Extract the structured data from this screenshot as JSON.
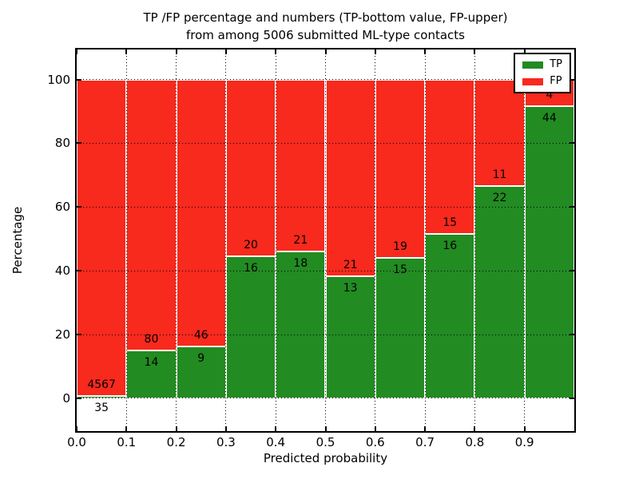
{
  "title": {
    "line1": "TP /FP percentage and numbers (TP-bottom value, FP-upper)",
    "line2": "from among 5006 submitted ML-type contacts"
  },
  "chart_data": {
    "type": "bar",
    "stacked": "percent",
    "title": "TP /FP percentage and numbers (TP-bottom value, FP-upper)\nfrom among 5006 submitted ML-type contacts",
    "xlabel": "Predicted probability",
    "ylabel": "Percentage",
    "total_submitted": 5006,
    "bin_width": 0.1,
    "bin_starts": [
      0.0,
      0.1,
      0.2,
      0.3,
      0.4,
      0.5,
      0.6,
      0.7,
      0.8,
      0.9
    ],
    "series": [
      {
        "name": "TP",
        "color": "#228b22",
        "counts": [
          35,
          14,
          9,
          16,
          18,
          13,
          15,
          16,
          22,
          44
        ]
      },
      {
        "name": "FP",
        "color": "#f8291d",
        "counts": [
          4567,
          80,
          46,
          20,
          21,
          21,
          19,
          15,
          11,
          4
        ]
      }
    ],
    "xtick_labels": [
      "0.0",
      "0.1",
      "0.2",
      "0.3",
      "0.4",
      "0.5",
      "0.6",
      "0.7",
      "0.8",
      "0.9"
    ],
    "ytick_values": [
      0,
      20,
      40,
      60,
      80,
      100
    ],
    "xlim": [
      0.0,
      1.0
    ],
    "ylim": [
      -10.3,
      109.4
    ],
    "grid": {
      "style": "dotted",
      "color": "#000000"
    },
    "legend": {
      "position": "upper-right",
      "entries": [
        {
          "label": "TP",
          "color": "#228b22"
        },
        {
          "label": "FP",
          "color": "#f8291d"
        }
      ]
    }
  }
}
